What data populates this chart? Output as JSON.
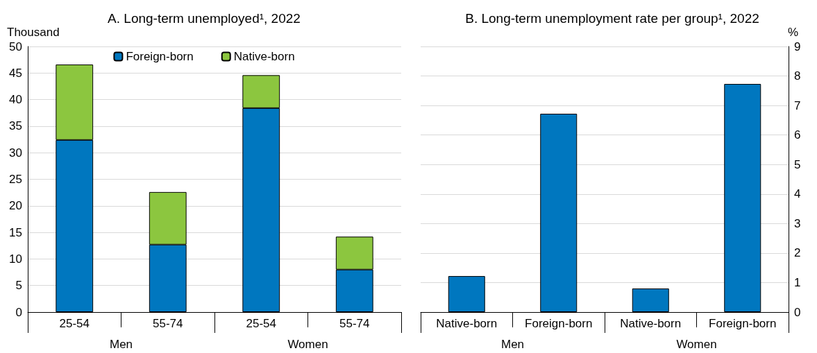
{
  "chart_data": [
    {
      "type": "bar",
      "title": "A. Long-term unemployed¹, 2022",
      "ylabel": "Thousand",
      "categories": [
        "25-54",
        "55-74",
        "25-54",
        "55-74"
      ],
      "annotations": [
        "Men",
        "Women"
      ],
      "stacked": true,
      "series": [
        {
          "name": "Foreign-born",
          "color": "#0077bf",
          "values": [
            32.4,
            12.7,
            38.4,
            8.0
          ]
        },
        {
          "name": "Native-born",
          "color": "#8cc63f",
          "values": [
            14.2,
            9.9,
            6.2,
            6.2
          ]
        }
      ],
      "ylim": [
        0,
        50
      ],
      "yticks": [
        0,
        5,
        10,
        15,
        20,
        25,
        30,
        35,
        40,
        45,
        50
      ],
      "grid": "y",
      "legend": "top"
    },
    {
      "type": "bar",
      "title": "B. Long-term unemployment rate per group¹, 2022",
      "y2label": "%",
      "categories": [
        "Native-born",
        "Foreign-born",
        "Native-born",
        "Foreign-born"
      ],
      "annotations": [
        "Men",
        "Women"
      ],
      "series": [
        {
          "color": "#0077bf",
          "axis": "y2",
          "values": [
            1.22,
            6.72,
            0.8,
            7.73
          ]
        }
      ],
      "y2lim": [
        0,
        9
      ],
      "y2ticks": [
        0,
        1,
        2,
        3,
        4,
        5,
        6,
        7,
        8,
        9
      ],
      "grid": "y",
      "legend": false
    }
  ]
}
